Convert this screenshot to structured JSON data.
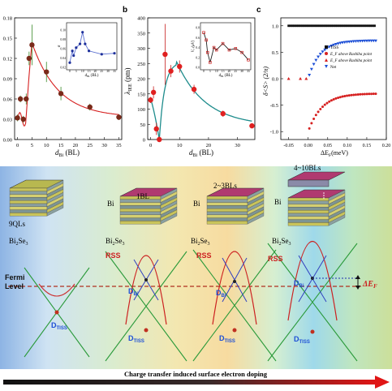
{
  "panels": {
    "a": {
      "letter": "",
      "xlabel": "d",
      "xlabel_sub": "Bi",
      "xlabel_unit": " (BL)",
      "xticks": [
        "0",
        "5",
        "10",
        "15",
        "20",
        "25",
        "30",
        "35"
      ],
      "yticks": [
        "0.00",
        "0.03",
        "0.06",
        "0.09",
        "0.12",
        "0.15",
        "0.18"
      ],
      "inset_ylabel": "σ",
      "inset_xlabel": "d",
      "inset_xlabel_sub": "Bi",
      "inset_xlabel_unit": " (BL)",
      "inset_xticks": [
        "0",
        "5",
        "10",
        "15",
        "20",
        "25",
        "30",
        "35"
      ],
      "inset_yticks": [
        "0.02",
        "0.04",
        "0.06",
        "0.08",
        "0.10"
      ]
    },
    "b": {
      "letter": "b",
      "xlabel": "d",
      "xlabel_sub": "Bi",
      "xlabel_unit": " (BL)",
      "ylabel": "λ",
      "ylabel_sub": "IEE",
      "ylabel_unit": " (pm)",
      "xticks": [
        "0",
        "10",
        "20",
        "30"
      ],
      "yticks": [
        "0",
        "50",
        "100",
        "150",
        "200",
        "250",
        "300",
        "350",
        "400"
      ],
      "inset_ylabel": "Vₓ (μV)",
      "inset_xlabel": "d",
      "inset_xlabel_sub": "Bi",
      "inset_xlabel_unit": " (BL)",
      "inset_xticks": [
        "0",
        "5",
        "10",
        "15",
        "20",
        "25",
        "30",
        "35"
      ],
      "inset_yticks": [
        "0.0",
        "0.2",
        "0.4",
        "0.6",
        "0.8"
      ]
    },
    "c": {
      "letter": "c",
      "ylabel": "δ<S> (2/π)",
      "xlabel": "ΔE",
      "xlabel_sub": "F",
      "xlabel_unit": "(meV)",
      "xticks": [
        "-0.05",
        "0.00",
        "0.05",
        "0.10",
        "0.15",
        "0.20"
      ],
      "yticks": [
        "-1.0",
        "-0.5",
        "0.0",
        "0.5",
        "1.0"
      ],
      "legend": [
        "TISS",
        "E_F above Rashiba point",
        "E_F above Rashiba point",
        "Net"
      ]
    }
  },
  "chart_data": [
    {
      "type": "scatter",
      "title": "",
      "xlabel": "d_Bi (BL)",
      "ylabel": "",
      "xlim": [
        -1,
        36
      ],
      "ylim": [
        0,
        0.18
      ],
      "series": [
        {
          "x": [
            0,
            1,
            2,
            3,
            4,
            5,
            10,
            15,
            25,
            35
          ],
          "y": [
            0.032,
            0.06,
            0.03,
            0.06,
            0.12,
            0.14,
            0.1,
            0.068,
            0.048,
            0.033
          ],
          "yerr": [
            0.005,
            0.005,
            0.005,
            0.008,
            0.01,
            0.03,
            0.015,
            0.01,
            0.005,
            0.004
          ]
        }
      ],
      "inset": {
        "xlabel": "d_Bi (BL)",
        "xlim": [
          0,
          35
        ],
        "ylim": [
          0.02,
          0.11
        ],
        "x": [
          0,
          2,
          3,
          5,
          8,
          10,
          12,
          15,
          25,
          35
        ],
        "y": [
          0.03,
          0.055,
          0.045,
          0.062,
          0.07,
          0.095,
          0.07,
          0.055,
          0.048,
          0.05
        ]
      }
    },
    {
      "type": "scatter",
      "title": "",
      "xlabel": "d_Bi (BL)",
      "ylabel": "λ_IEE (pm)",
      "xlim": [
        -1,
        36
      ],
      "ylim": [
        0,
        400
      ],
      "series": [
        {
          "x": [
            0,
            1,
            2,
            3,
            5,
            7,
            10,
            15,
            25,
            35
          ],
          "y": [
            130,
            155,
            35,
            0,
            280,
            225,
            240,
            165,
            85,
            45
          ],
          "yerr": [
            10,
            20,
            20,
            10,
            100,
            20,
            20,
            15,
            10,
            5
          ]
        }
      ],
      "inset": {
        "ylabel": "V_x (μV)",
        "xlabel": "d_Bi (BL)",
        "xlim": [
          0,
          35
        ],
        "ylim": [
          0,
          0.85
        ],
        "x": [
          0,
          2,
          3,
          5,
          8,
          10,
          15,
          20,
          25,
          30,
          35
        ],
        "y": [
          0.7,
          0.55,
          0.3,
          0.1,
          0.4,
          0.35,
          0.48,
          0.35,
          0.38,
          0.3,
          0.15
        ]
      }
    },
    {
      "type": "scatter",
      "title": "",
      "xlabel": "ΔE_F (meV)",
      "ylabel": "δ<S> (2/π)",
      "xlim": [
        -0.07,
        0.2
      ],
      "ylim": [
        -1.15,
        1.15
      ],
      "series": [
        {
          "name": "TISS",
          "x": [
            -0.05,
            -0.03,
            -0.01,
            0.0,
            0.02,
            0.04,
            0.06,
            0.08,
            0.1,
            0.12,
            0.14,
            0.16,
            0.17
          ],
          "y": [
            1.0,
            1.0,
            1.0,
            1.0,
            1.0,
            1.0,
            1.0,
            1.0,
            1.0,
            1.0,
            1.0,
            1.0,
            1.0
          ]
        },
        {
          "name": "E_F above Rashiba point",
          "x": [
            -0.05,
            -0.01
          ],
          "y": [
            0.0,
            0.0
          ]
        },
        {
          "name": "E_F above Rashiba point",
          "x": [
            0.0,
            0.01,
            0.03,
            0.05,
            0.08,
            0.12,
            0.17
          ],
          "y": [
            -1.0,
            -0.85,
            -0.65,
            -0.52,
            -0.42,
            -0.34,
            -0.3
          ]
        },
        {
          "name": "Net",
          "x": [
            0.0,
            0.01,
            0.03,
            0.05,
            0.08,
            0.12,
            0.17
          ],
          "y": [
            0.0,
            0.2,
            0.4,
            0.52,
            0.6,
            0.65,
            0.72
          ]
        }
      ]
    }
  ],
  "diagram": {
    "labels": {
      "ql": "9QLs",
      "bi2se3": "Bi",
      "bi2se3_sub2": "2",
      "bi2se3_se": "Se",
      "bi2se3_sub3": "3",
      "bi": "Bi",
      "one_bl": "1BL",
      "two_three": "2~3BLs",
      "four_ten": "4~10BLs",
      "rss": "RSS",
      "fermi": "Fermi",
      "level": "Level",
      "dtiss": "D",
      "dtiss_sub": "TISS",
      "dbi": "D",
      "dbi_sub": "Bi",
      "delta_ef": "ΔE",
      "delta_ef_sub": "F"
    },
    "caption": "Charge transfer induced surface electron doping"
  }
}
